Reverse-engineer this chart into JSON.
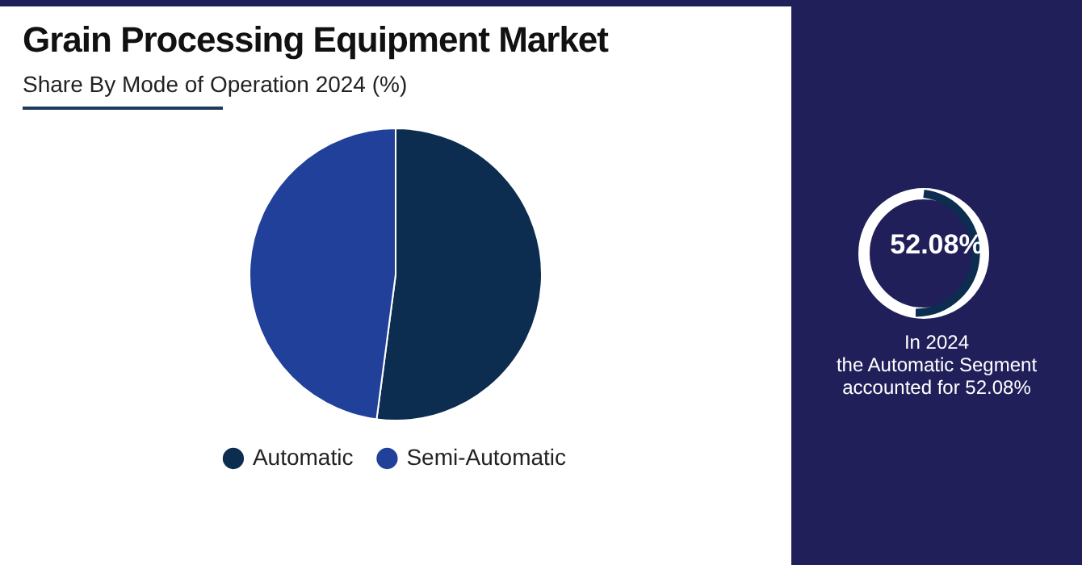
{
  "chart_data": {
    "type": "pie",
    "title": "Grain Processing Equipment Market",
    "subtitle": "Share By Mode of Operation 2024 (%)",
    "categories": [
      "Automatic",
      "Semi-Automatic"
    ],
    "values": [
      52.08,
      47.92
    ],
    "colors": [
      "#0c2d4f",
      "#21409a"
    ],
    "legend": "bottom",
    "annotations": [
      "52.08%",
      "In 2024\nthe Automatic Segment\naccounted for 52.08%"
    ]
  }
}
